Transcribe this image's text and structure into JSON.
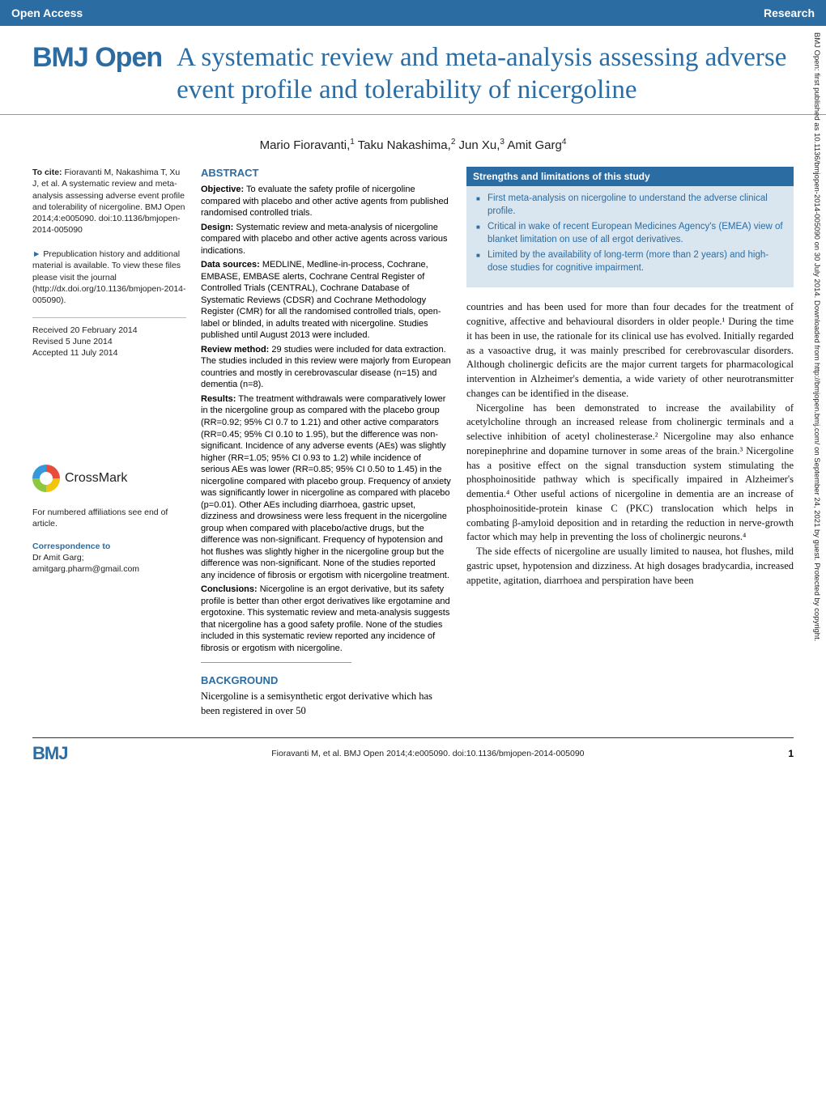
{
  "colors": {
    "brand": "#2b6ca3",
    "box_bg": "#d9e6ef",
    "text": "#222222",
    "white": "#ffffff"
  },
  "header": {
    "left": "Open Access",
    "right": "Research"
  },
  "logo": "BMJ Open",
  "title": "A systematic review and meta-analysis assessing adverse event profile and tolerability of nicergoline",
  "authors_html": "Mario Fioravanti,<sup>1</sup> Taku Nakashima,<sup>2</sup> Jun Xu,<sup>3</sup> Amit Garg<sup>4</sup>",
  "cite": {
    "label": "To cite:",
    "text": "Fioravanti M, Nakashima T, Xu J, et al. A systematic review and meta-analysis assessing adverse event profile and tolerability of nicergoline. BMJ Open 2014;4:e005090. doi:10.1136/bmjopen-2014-005090"
  },
  "prepub": "Prepublication history and additional material is available. To view these files please visit the journal (http://dx.doi.org/10.1136/bmjopen-2014-005090).",
  "dates": {
    "received": "Received 20 February 2014",
    "revised": "Revised 5 June 2014",
    "accepted": "Accepted 11 July 2014"
  },
  "crossmark": "CrossMark",
  "affil_note": "For numbered affiliations see end of article.",
  "correspondence": {
    "hdr": "Correspondence to",
    "name": "Dr Amit Garg;",
    "email": "amitgarg.pharm@gmail.com"
  },
  "abstract": {
    "hdr": "ABSTRACT",
    "objective": {
      "label": "Objective:",
      "text": "To evaluate the safety profile of nicergoline compared with placebo and other active agents from published randomised controlled trials."
    },
    "design": {
      "label": "Design:",
      "text": "Systematic review and meta-analysis of nicergoline compared with placebo and other active agents across various indications."
    },
    "data_sources": {
      "label": "Data sources:",
      "text": "MEDLINE, Medline-in-process, Cochrane, EMBASE, EMBASE alerts, Cochrane Central Register of Controlled Trials (CENTRAL), Cochrane Database of Systematic Reviews (CDSR) and Cochrane Methodology Register (CMR) for all the randomised controlled trials, open-label or blinded, in adults treated with nicergoline. Studies published until August 2013 were included."
    },
    "review_method": {
      "label": "Review method:",
      "text": "29 studies were included for data extraction. The studies included in this review were majorly from European countries and mostly in cerebrovascular disease (n=15) and dementia (n=8)."
    },
    "results": {
      "label": "Results:",
      "text": "The treatment withdrawals were comparatively lower in the nicergoline group as compared with the placebo group (RR=0.92; 95% CI 0.7 to 1.21) and other active comparators (RR=0.45; 95% CI 0.10 to 1.95), but the difference was non-significant. Incidence of any adverse events (AEs) was slightly higher (RR=1.05; 95% CI 0.93 to 1.2) while incidence of serious AEs was lower (RR=0.85; 95% CI 0.50 to 1.45) in the nicergoline compared with placebo group. Frequency of anxiety was significantly lower in nicergoline as compared with placebo (p=0.01). Other AEs including diarrhoea, gastric upset, dizziness and drowsiness were less frequent in the nicergoline group when compared with placebo/active drugs, but the difference was non-significant. Frequency of hypotension and hot flushes was slightly higher in the nicergoline group but the difference was non-significant. None of the studies reported any incidence of fibrosis or ergotism with nicergoline treatment."
    },
    "conclusions": {
      "label": "Conclusions:",
      "text": "Nicergoline is an ergot derivative, but its safety profile is better than other ergot derivatives like ergotamine and ergotoxine. This systematic review and meta-analysis suggests that nicergoline has a good safety profile. None of the studies included in this systematic review reported any incidence of fibrosis or ergotism with nicergoline."
    }
  },
  "background": {
    "hdr": "BACKGROUND",
    "text": "Nicergoline is a semisynthetic ergot derivative which has been registered in over 50"
  },
  "strengths": {
    "hdr": "Strengths and limitations of this study",
    "items": [
      "First meta-analysis on nicergoline to understand the adverse clinical profile.",
      "Critical in wake of recent European Medicines Agency's (EMEA) view of blanket limitation on use of all ergot derivatives.",
      "Limited by the availability of long-term (more than 2 years) and high-dose studies for cognitive impairment."
    ]
  },
  "body": {
    "p1": "countries and has been used for more than four decades for the treatment of cognitive, affective and behavioural disorders in older people.¹ During the time it has been in use, the rationale for its clinical use has evolved. Initially regarded as a vasoactive drug, it was mainly prescribed for cerebrovascular disorders. Although cholinergic deficits are the major current targets for pharmacological intervention in Alzheimer's dementia, a wide variety of other neurotransmitter changes can be identified in the disease.",
    "p2": "Nicergoline has been demonstrated to increase the availability of acetylcholine through an increased release from cholinergic terminals and a selective inhibition of acetyl cholinesterase.² Nicergoline may also enhance norepinephrine and dopamine turnover in some areas of the brain.³ Nicergoline has a positive effect on the signal transduction system stimulating the phosphoinositide pathway which is specifically impaired in Alzheimer's dementia.⁴ Other useful actions of nicergoline in dementia are an increase of phosphoinositide-protein kinase C (PKC) translocation which helps in combating β-amyloid deposition and in retarding the reduction in nerve-growth factor which may help in preventing the loss of cholinergic neurons.⁴",
    "p3": "The side effects of nicergoline are usually limited to nausea, hot flushes, mild gastric upset, hypotension and dizziness. At high dosages bradycardia, increased appetite, agitation, diarrhoea and perspiration have been"
  },
  "footer": {
    "logo": "BMJ",
    "cite": "Fioravanti M, et al. BMJ Open 2014;4:e005090. doi:10.1136/bmjopen-2014-005090",
    "page": "1"
  },
  "sidebar": "BMJ Open: first published as 10.1136/bmjopen-2014-005090 on 30 July 2014. Downloaded from http://bmjopen.bmj.com/ on September 24, 2021 by guest. Protected by copyright."
}
